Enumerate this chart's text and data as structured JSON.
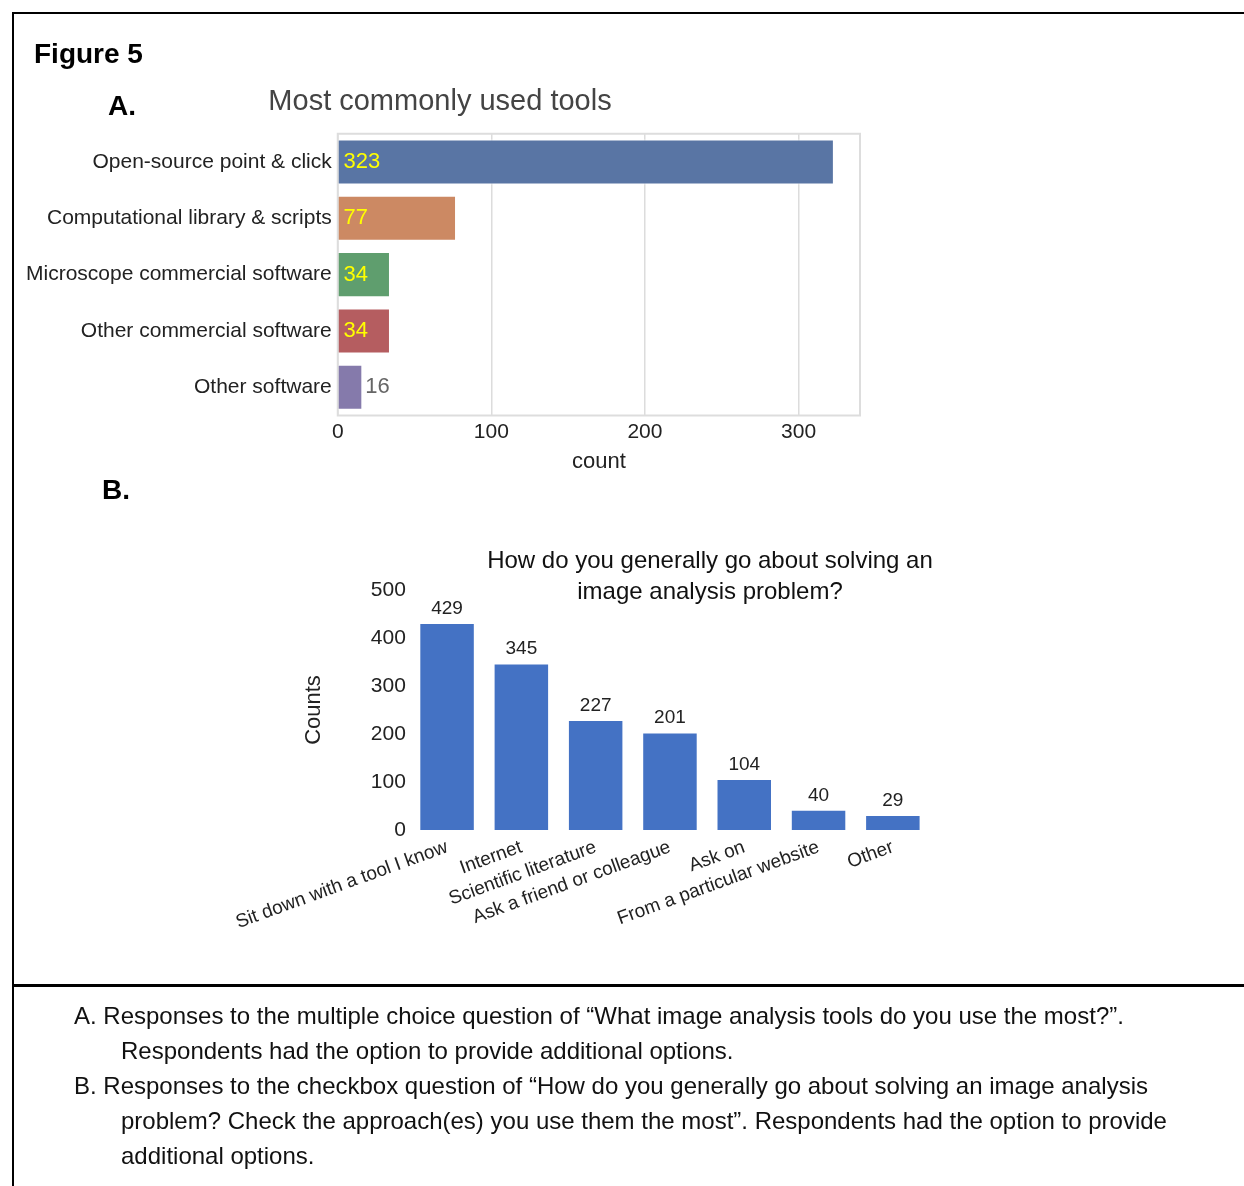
{
  "chart_data": [
    {
      "type": "bar",
      "orientation": "horizontal",
      "title": "Most commonly used tools",
      "xlabel": "count",
      "categories": [
        "Open-source point & click",
        "Computational library & scripts",
        "Microscope commercial software",
        "Other commercial software",
        "Other software"
      ],
      "values": [
        323,
        77,
        34,
        34,
        16
      ],
      "colors": [
        "#5975a4",
        "#cc8963",
        "#5f9e6e",
        "#b55d60",
        "#857aab"
      ],
      "xlim": [
        0,
        340
      ],
      "xticks": [
        0,
        100,
        200,
        300
      ],
      "grid": "x",
      "data_labels": true,
      "annotations": [
        "Figure 5",
        "A.",
        "A.  Responses to the multiple choice question of “What image analysis tools do you use the most?”. Respondents had the option to provide additional options."
      ]
    },
    {
      "type": "bar",
      "title": "How do you generally go about solving an image analysis problem?",
      "ylabel": "Counts",
      "categories": [
        "Sit down with a tool I know",
        "Internet",
        "Scientific literature",
        "Ask a friend or colleague",
        "Ask on",
        "From a particular website",
        "Other"
      ],
      "values": [
        429,
        345,
        227,
        201,
        104,
        40,
        29
      ],
      "color": "#4472c4",
      "ylim": [
        0,
        500
      ],
      "yticks": [
        0,
        100,
        200,
        300,
        400,
        500
      ],
      "grid": false,
      "data_labels": true,
      "annotations": [
        "B.",
        "B.  Responses to the checkbox question of “How do you generally go about solving an image analysis problem? Check the approach(es) you use them the most”. Respondents had the option to provide additional options."
      ]
    }
  ]
}
